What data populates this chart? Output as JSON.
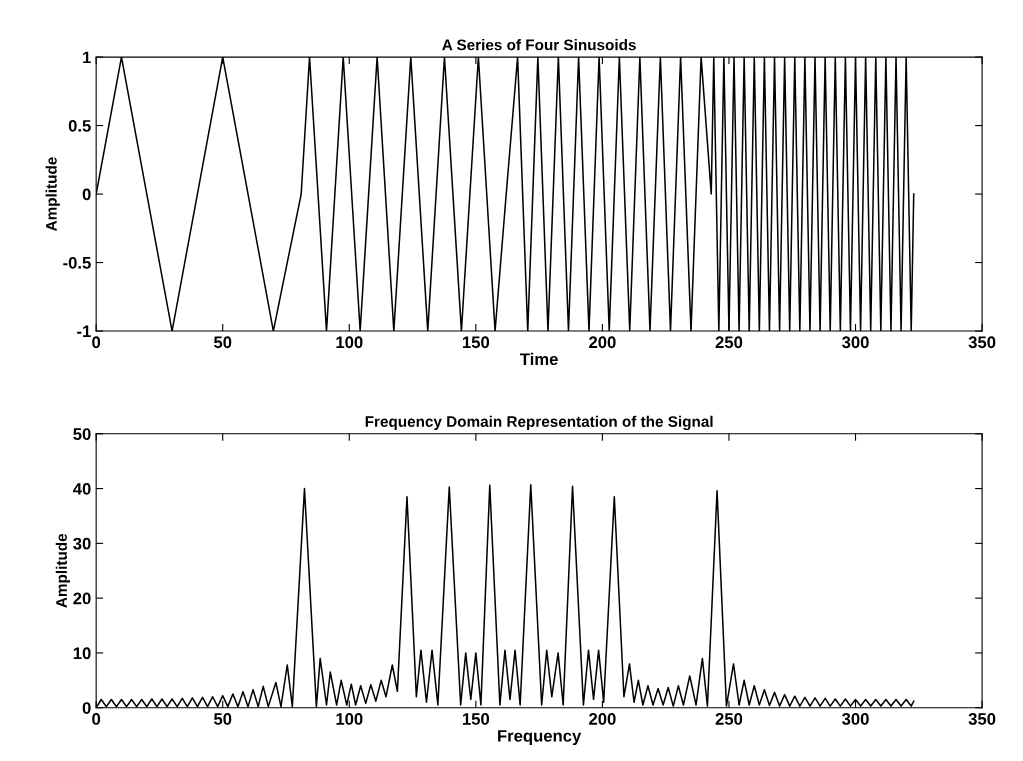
{
  "chart_data": [
    {
      "type": "line",
      "title": "A Series of Four Sinusoids",
      "xlabel": "Time",
      "ylabel": "Amplitude",
      "xlim": [
        0,
        350
      ],
      "ylim": [
        -1,
        1
      ],
      "xticks": [
        0,
        50,
        100,
        150,
        200,
        250,
        300,
        350
      ],
      "yticks": [
        -1,
        -0.5,
        0,
        0.5,
        1
      ],
      "x": [
        0,
        10,
        20,
        30,
        40,
        50,
        60,
        70,
        81,
        84.3,
        91,
        97.6,
        104.3,
        111,
        117.6,
        124.3,
        131,
        137.6,
        144.3,
        151,
        157.6,
        162,
        166.5,
        170.5,
        174.5,
        178.5,
        182.6,
        186.6,
        190.6,
        194.7,
        198.7,
        202.7,
        206.7,
        210.8,
        214.8,
        218.8,
        222.9,
        226.9,
        230.9,
        235,
        239,
        243,
        244,
        246,
        248,
        250,
        252,
        254,
        256,
        258,
        260,
        262,
        264,
        266,
        268,
        270,
        272,
        274,
        276,
        278,
        280,
        282,
        284,
        286,
        288,
        290,
        292,
        294,
        296,
        298,
        300,
        302,
        304,
        306,
        308,
        310,
        312,
        314,
        316,
        318,
        320,
        322,
        323
      ],
      "series": [
        {
          "color": "#000000",
          "values": [
            0,
            1,
            0,
            -1,
            0,
            1,
            0,
            -1,
            0,
            1,
            -1,
            1,
            -1,
            1,
            -1,
            1,
            -1,
            1,
            -1,
            1,
            -1,
            0,
            1,
            -1,
            1,
            -1,
            1,
            -1,
            1,
            -1,
            1,
            -1,
            1,
            -1,
            1,
            -1,
            1,
            -1,
            1,
            -1,
            1,
            0,
            1,
            -1,
            1,
            -1,
            1,
            -1,
            1,
            -1,
            1,
            -1,
            1,
            -1,
            1,
            -1,
            1,
            -1,
            1,
            -1,
            1,
            -1,
            1,
            -1,
            1,
            -1,
            1,
            -1,
            1,
            -1,
            1,
            -1,
            1,
            -1,
            1,
            -1,
            1,
            -1,
            1,
            -1,
            1,
            -1,
            0
          ]
        }
      ]
    },
    {
      "type": "line",
      "title": "Frequency Domain Representation of the Signal",
      "xlabel": "Frequency",
      "ylabel": "Amplitude",
      "xlim": [
        0,
        350
      ],
      "ylim": [
        0,
        50
      ],
      "xticks": [
        0,
        50,
        100,
        150,
        200,
        250,
        300,
        350
      ],
      "yticks": [
        0,
        10,
        20,
        30,
        40,
        50
      ],
      "x": [
        0,
        2,
        4,
        6,
        8,
        10,
        12,
        14,
        16,
        18,
        20,
        22,
        24,
        26,
        28,
        30,
        32,
        34,
        36,
        38,
        40,
        42,
        44,
        46,
        48,
        50,
        52,
        54,
        56,
        58,
        60,
        62,
        64,
        66,
        68,
        71,
        73,
        75.5,
        77.5,
        82.3,
        87,
        88.5,
        91,
        92.5,
        95,
        96.8,
        99,
        100.8,
        102.5,
        104.5,
        106.5,
        108.5,
        110.5,
        112.6,
        114.5,
        117,
        119,
        122.8,
        126.5,
        128.3,
        130.5,
        132.7,
        135,
        139.5,
        144,
        146,
        148,
        150,
        152,
        155.5,
        159.5,
        161.5,
        163.5,
        165.5,
        167.5,
        171.7,
        176,
        178,
        180,
        182.5,
        184.5,
        188.2,
        192.5,
        194.5,
        196.5,
        198.5,
        200.5,
        204.7,
        208.5,
        210.7,
        212.5,
        214.2,
        216,
        218,
        220,
        222,
        224,
        226,
        228,
        230,
        232,
        234.5,
        237,
        239.5,
        241.5,
        245.3,
        249,
        251.8,
        254,
        256,
        258,
        260,
        262,
        264,
        266,
        268,
        270,
        272,
        274,
        276,
        278,
        280,
        282,
        284,
        286,
        288,
        290,
        292,
        294,
        296,
        298,
        300,
        302,
        304,
        306,
        308,
        310,
        312,
        314,
        316,
        318,
        320,
        322,
        323
      ],
      "series": [
        {
          "color": "#000000",
          "values": [
            0,
            1.5,
            0.2,
            1.5,
            0.2,
            1.5,
            0.2,
            1.5,
            0.2,
            1.5,
            0.2,
            1.6,
            0.2,
            1.6,
            0.2,
            1.6,
            0.2,
            1.7,
            0.2,
            1.8,
            0.2,
            1.9,
            0.2,
            2.0,
            0.2,
            2.2,
            0.2,
            2.5,
            0.2,
            2.9,
            0.2,
            3.3,
            0.2,
            3.9,
            0.2,
            4.6,
            0.2,
            7.8,
            0.2,
            40,
            0.2,
            9,
            0.5,
            6.5,
            0.5,
            5,
            0.5,
            4.3,
            0.5,
            4,
            0.8,
            4.2,
            1.2,
            5,
            2,
            7.8,
            3,
            38.5,
            2,
            10.5,
            1,
            10.5,
            0.5,
            40.3,
            0.5,
            10,
            1.5,
            10,
            0.5,
            40.6,
            0.5,
            10.5,
            1.5,
            10.5,
            0.5,
            40.7,
            0.5,
            10.5,
            2,
            10,
            0.5,
            40.4,
            0.5,
            10.5,
            1.5,
            10.5,
            1,
            38.5,
            2,
            8,
            1,
            5,
            0.5,
            4,
            0.5,
            3.5,
            0.5,
            3.7,
            0.3,
            4,
            0.5,
            5.8,
            0.5,
            9,
            0.3,
            39.6,
            0.3,
            8,
            0.5,
            5,
            0.5,
            4,
            0.5,
            3.3,
            0.4,
            2.8,
            0.3,
            2.4,
            0.3,
            2.1,
            0.3,
            1.9,
            0.3,
            1.8,
            0.3,
            1.7,
            0.3,
            1.6,
            0.3,
            1.6,
            0.3,
            1.5,
            0.3,
            1.5,
            0.3,
            1.5,
            0.3,
            1.5,
            0.3,
            1.5,
            0.3,
            1.5,
            0.3,
            1.2
          ]
        }
      ]
    }
  ]
}
